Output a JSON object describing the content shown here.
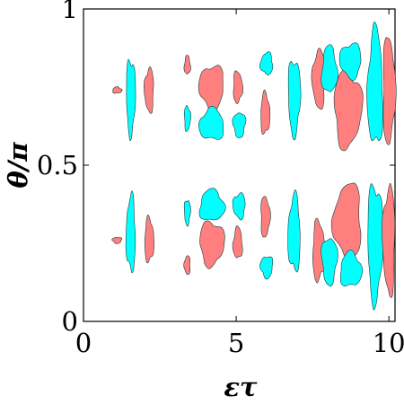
{
  "chart_data": {
    "type": "contour",
    "xlabel": "ετ",
    "ylabel": "θ/π",
    "xlim": [
      0,
      10.2
    ],
    "ylim": [
      0,
      1
    ],
    "xticks": [
      {
        "value": 0,
        "label": "0"
      },
      {
        "value": 5,
        "label": "5"
      },
      {
        "value": 10,
        "label": "10"
      }
    ],
    "yticks": [
      {
        "value": 0,
        "label": "0"
      },
      {
        "value": 0.5,
        "label": "0.5"
      },
      {
        "value": 1,
        "label": "1"
      }
    ],
    "grid": false,
    "colors": {
      "positive": "#ff7f7f",
      "negative": "#00ffff",
      "outline": "#1c3c3c"
    },
    "regions_upper": [
      {
        "sign": "positive",
        "x": [
          0.95,
          1.25
        ],
        "y": [
          0.73,
          0.75
        ]
      },
      {
        "sign": "negative",
        "x": [
          1.4,
          1.7
        ],
        "y": [
          0.6,
          0.84
        ]
      },
      {
        "sign": "positive",
        "x": [
          2.0,
          2.3
        ],
        "y": [
          0.67,
          0.81
        ]
      },
      {
        "sign": "positive",
        "x": [
          3.3,
          3.5
        ],
        "y": [
          0.79,
          0.85
        ]
      },
      {
        "sign": "negative",
        "x": [
          3.3,
          3.5
        ],
        "y": [
          0.61,
          0.69
        ]
      },
      {
        "sign": "positive",
        "x": [
          3.8,
          4.6
        ],
        "y": [
          0.68,
          0.82
        ]
      },
      {
        "sign": "negative",
        "x": [
          3.8,
          4.6
        ],
        "y": [
          0.58,
          0.68
        ]
      },
      {
        "sign": "positive",
        "x": [
          4.9,
          5.2
        ],
        "y": [
          0.7,
          0.8
        ]
      },
      {
        "sign": "negative",
        "x": [
          4.9,
          5.3
        ],
        "y": [
          0.59,
          0.67
        ]
      },
      {
        "sign": "negative",
        "x": [
          5.8,
          6.2
        ],
        "y": [
          0.79,
          0.86
        ]
      },
      {
        "sign": "positive",
        "x": [
          5.8,
          6.1
        ],
        "y": [
          0.6,
          0.73
        ]
      },
      {
        "sign": "negative",
        "x": [
          6.7,
          7.1
        ],
        "y": [
          0.6,
          0.84
        ]
      },
      {
        "sign": "positive",
        "x": [
          7.5,
          7.9
        ],
        "y": [
          0.68,
          0.87
        ]
      },
      {
        "sign": "negative",
        "x": [
          7.8,
          8.3
        ],
        "y": [
          0.73,
          0.88
        ]
      },
      {
        "sign": "positive",
        "x": [
          8.2,
          9.1
        ],
        "y": [
          0.56,
          0.8
        ]
      },
      {
        "sign": "negative",
        "x": [
          8.4,
          9.1
        ],
        "y": [
          0.78,
          0.89
        ]
      },
      {
        "sign": "negative",
        "x": [
          9.3,
          9.8
        ],
        "y": [
          0.56,
          0.93
        ]
      },
      {
        "sign": "positive",
        "x": [
          9.8,
          10.2
        ],
        "y": [
          0.57,
          0.91
        ]
      }
    ],
    "regions_lower": [
      {
        "sign": "positive",
        "x": [
          0.95,
          1.25
        ],
        "y": [
          0.25,
          0.27
        ]
      },
      {
        "sign": "negative",
        "x": [
          1.4,
          1.7
        ],
        "y": [
          0.16,
          0.4
        ]
      },
      {
        "sign": "positive",
        "x": [
          2.0,
          2.3
        ],
        "y": [
          0.19,
          0.33
        ]
      },
      {
        "sign": "negative",
        "x": [
          3.3,
          3.5
        ],
        "y": [
          0.31,
          0.39
        ]
      },
      {
        "sign": "positive",
        "x": [
          3.3,
          3.5
        ],
        "y": [
          0.15,
          0.21
        ]
      },
      {
        "sign": "negative",
        "x": [
          3.8,
          4.6
        ],
        "y": [
          0.32,
          0.42
        ]
      },
      {
        "sign": "positive",
        "x": [
          3.8,
          4.6
        ],
        "y": [
          0.18,
          0.32
        ]
      },
      {
        "sign": "negative",
        "x": [
          4.9,
          5.3
        ],
        "y": [
          0.33,
          0.41
        ]
      },
      {
        "sign": "positive",
        "x": [
          4.9,
          5.2
        ],
        "y": [
          0.2,
          0.3
        ]
      },
      {
        "sign": "positive",
        "x": [
          5.8,
          6.1
        ],
        "y": [
          0.27,
          0.4
        ]
      },
      {
        "sign": "negative",
        "x": [
          5.8,
          6.2
        ],
        "y": [
          0.14,
          0.21
        ]
      },
      {
        "sign": "negative",
        "x": [
          6.7,
          7.1
        ],
        "y": [
          0.16,
          0.4
        ]
      },
      {
        "sign": "positive",
        "x": [
          7.5,
          7.9
        ],
        "y": [
          0.13,
          0.32
        ]
      },
      {
        "sign": "negative",
        "x": [
          7.8,
          8.3
        ],
        "y": [
          0.12,
          0.27
        ]
      },
      {
        "sign": "positive",
        "x": [
          8.2,
          9.1
        ],
        "y": [
          0.2,
          0.44
        ]
      },
      {
        "sign": "negative",
        "x": [
          8.4,
          9.1
        ],
        "y": [
          0.11,
          0.22
        ]
      },
      {
        "sign": "negative",
        "x": [
          9.3,
          9.8
        ],
        "y": [
          0.07,
          0.44
        ]
      },
      {
        "sign": "positive",
        "x": [
          9.8,
          10.2
        ],
        "y": [
          0.09,
          0.43
        ]
      }
    ]
  }
}
